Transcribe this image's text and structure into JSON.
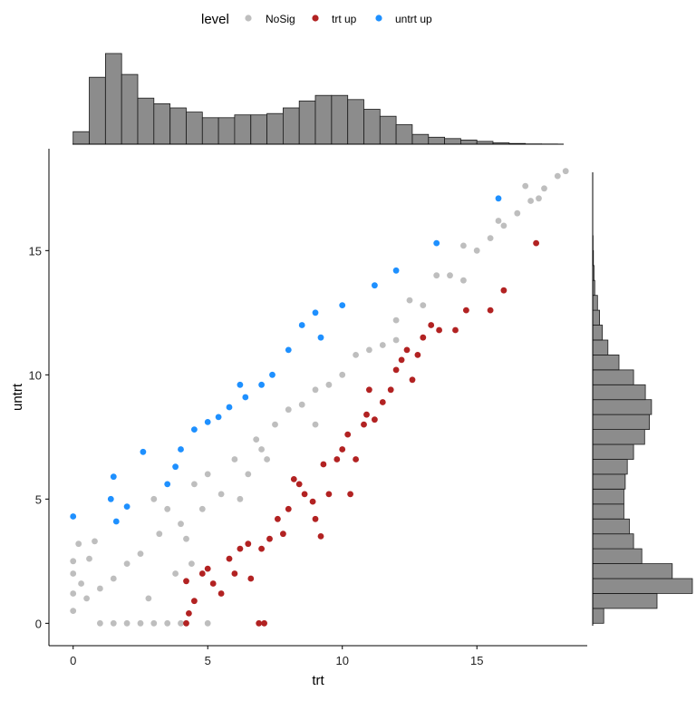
{
  "legend": {
    "title": "level",
    "items": [
      {
        "label": "NoSig",
        "color": "#bebebe"
      },
      {
        "label": "trt up",
        "color": "#b22222"
      },
      {
        "label": "untrt up",
        "color": "#1e90ff"
      }
    ]
  },
  "chart_data": {
    "type": "scatter",
    "xlabel": "trt",
    "ylabel": "untrt",
    "xlim": [
      -0.9,
      19.1
    ],
    "ylim": [
      -0.9,
      19.1
    ],
    "xticks": [
      0,
      5,
      10,
      15
    ],
    "yticks": [
      0,
      5,
      10,
      15
    ],
    "grid": false,
    "legend_position": "top",
    "series": [
      {
        "name": "NoSig",
        "color": "#bebebe",
        "points": [
          [
            0.0,
            1.2
          ],
          [
            0.0,
            2.0
          ],
          [
            0.0,
            2.5
          ],
          [
            0.0,
            0.5
          ],
          [
            0.2,
            3.2
          ],
          [
            0.3,
            1.6
          ],
          [
            0.6,
            2.6
          ],
          [
            0.8,
            3.3
          ],
          [
            1.0,
            0.0
          ],
          [
            1.5,
            0.0
          ],
          [
            2.0,
            0.0
          ],
          [
            2.5,
            0.0
          ],
          [
            3.0,
            0.0
          ],
          [
            3.5,
            0.0
          ],
          [
            4.0,
            0.0
          ],
          [
            5.0,
            0.0
          ],
          [
            3.0,
            5.0
          ],
          [
            3.5,
            4.6
          ],
          [
            4.0,
            4.0
          ],
          [
            4.5,
            5.6
          ],
          [
            5.0,
            6.0
          ],
          [
            6.0,
            6.6
          ],
          [
            6.5,
            6.0
          ],
          [
            7.0,
            7.0
          ],
          [
            7.5,
            8.0
          ],
          [
            8.0,
            8.6
          ],
          [
            9.0,
            9.4
          ],
          [
            10.0,
            10.0
          ],
          [
            11.0,
            11.0
          ],
          [
            12.0,
            12.2
          ],
          [
            13.0,
            12.8
          ],
          [
            14.0,
            14.0
          ],
          [
            15.0,
            15.0
          ],
          [
            15.5,
            15.5
          ],
          [
            16.0,
            16.0
          ],
          [
            16.5,
            16.5
          ],
          [
            17.0,
            17.0
          ],
          [
            17.5,
            17.5
          ],
          [
            18.0,
            18.0
          ],
          [
            18.3,
            18.2
          ],
          [
            15.8,
            16.2
          ],
          [
            16.8,
            17.6
          ],
          [
            17.3,
            17.1
          ],
          [
            14.5,
            15.2
          ],
          [
            13.5,
            14.0
          ],
          [
            12.5,
            13.0
          ],
          [
            11.5,
            11.2
          ],
          [
            10.5,
            10.8
          ],
          [
            9.5,
            9.6
          ],
          [
            8.5,
            8.8
          ],
          [
            7.2,
            6.6
          ],
          [
            6.8,
            7.4
          ],
          [
            5.5,
            5.2
          ],
          [
            4.8,
            4.6
          ],
          [
            4.2,
            3.4
          ],
          [
            3.2,
            3.6
          ],
          [
            2.5,
            2.8
          ],
          [
            2.0,
            2.4
          ],
          [
            1.5,
            1.8
          ],
          [
            1.0,
            1.4
          ],
          [
            0.5,
            1.0
          ],
          [
            2.8,
            1.0
          ],
          [
            3.8,
            2.0
          ],
          [
            4.4,
            2.4
          ],
          [
            6.2,
            5.0
          ],
          [
            9.0,
            8.0
          ],
          [
            12.0,
            11.4
          ],
          [
            14.5,
            13.8
          ]
        ]
      },
      {
        "name": "trt up",
        "color": "#b22222",
        "points": [
          [
            4.2,
            1.7
          ],
          [
            4.5,
            0.9
          ],
          [
            4.2,
            0.0
          ],
          [
            4.3,
            0.4
          ],
          [
            4.8,
            2.0
          ],
          [
            5.0,
            2.2
          ],
          [
            5.2,
            1.6
          ],
          [
            5.5,
            1.2
          ],
          [
            5.8,
            2.6
          ],
          [
            6.0,
            2.0
          ],
          [
            6.2,
            3.0
          ],
          [
            6.5,
            3.2
          ],
          [
            6.6,
            1.8
          ],
          [
            6.9,
            0.0
          ],
          [
            7.1,
            0.0
          ],
          [
            7.0,
            3.0
          ],
          [
            7.3,
            3.4
          ],
          [
            7.6,
            4.2
          ],
          [
            7.8,
            3.6
          ],
          [
            8.0,
            4.6
          ],
          [
            8.2,
            5.8
          ],
          [
            8.4,
            5.6
          ],
          [
            8.6,
            5.2
          ],
          [
            8.9,
            4.9
          ],
          [
            9.2,
            3.5
          ],
          [
            9.5,
            5.2
          ],
          [
            9.3,
            6.4
          ],
          [
            9.8,
            6.6
          ],
          [
            10.0,
            7.0
          ],
          [
            10.2,
            7.6
          ],
          [
            10.5,
            6.6
          ],
          [
            10.3,
            5.2
          ],
          [
            10.8,
            8.0
          ],
          [
            11.0,
            9.4
          ],
          [
            11.2,
            8.2
          ],
          [
            11.5,
            8.9
          ],
          [
            11.8,
            9.4
          ],
          [
            12.0,
            10.2
          ],
          [
            12.2,
            10.6
          ],
          [
            12.4,
            11.0
          ],
          [
            12.8,
            10.8
          ],
          [
            13.0,
            11.5
          ],
          [
            13.3,
            12.0
          ],
          [
            13.6,
            11.8
          ],
          [
            14.2,
            11.8
          ],
          [
            14.6,
            12.6
          ],
          [
            15.5,
            12.6
          ],
          [
            16.0,
            13.4
          ],
          [
            17.2,
            15.3
          ],
          [
            9.0,
            4.2
          ],
          [
            10.9,
            8.4
          ],
          [
            12.6,
            9.8
          ]
        ]
      },
      {
        "name": "untrt up",
        "color": "#1e90ff",
        "points": [
          [
            0.0,
            4.3
          ],
          [
            1.4,
            5.0
          ],
          [
            1.6,
            4.1
          ],
          [
            1.5,
            5.9
          ],
          [
            2.0,
            4.7
          ],
          [
            2.6,
            6.9
          ],
          [
            3.5,
            5.6
          ],
          [
            3.8,
            6.3
          ],
          [
            4.0,
            7.0
          ],
          [
            4.5,
            7.8
          ],
          [
            5.0,
            8.1
          ],
          [
            5.4,
            8.3
          ],
          [
            5.8,
            8.7
          ],
          [
            6.2,
            9.6
          ],
          [
            6.4,
            9.1
          ],
          [
            7.0,
            9.6
          ],
          [
            7.4,
            10.0
          ],
          [
            8.0,
            11.0
          ],
          [
            8.5,
            12.0
          ],
          [
            9.0,
            12.5
          ],
          [
            9.2,
            11.5
          ],
          [
            10.0,
            12.8
          ],
          [
            11.2,
            13.6
          ],
          [
            12.0,
            14.2
          ],
          [
            13.5,
            15.3
          ],
          [
            15.8,
            17.1
          ]
        ]
      }
    ],
    "marginal_top": {
      "type": "histogram",
      "bin_start": 0.0,
      "bin_width": 0.6,
      "counts": [
        0.9,
        4.8,
        6.5,
        5.0,
        3.3,
        2.9,
        2.6,
        2.3,
        1.9,
        1.9,
        2.1,
        2.1,
        2.2,
        2.6,
        3.1,
        3.5,
        3.5,
        3.2,
        2.5,
        2.0,
        1.4,
        0.7,
        0.5,
        0.4,
        0.3,
        0.2,
        0.1,
        0.05,
        0.02,
        0.01
      ]
    },
    "marginal_right": {
      "type": "histogram",
      "bin_start": 0.0,
      "bin_width": 0.6,
      "counts": [
        1.6,
        9.3,
        14.4,
        11.5,
        7.1,
        5.9,
        5.3,
        4.5,
        4.5,
        4.7,
        5.0,
        5.9,
        7.5,
        8.2,
        8.5,
        7.6,
        5.9,
        3.8,
        2.2,
        1.4,
        1.0,
        0.7,
        0.3,
        0.2,
        0.1,
        0.05,
        0.0,
        0.0,
        0.0,
        0.0
      ]
    }
  }
}
